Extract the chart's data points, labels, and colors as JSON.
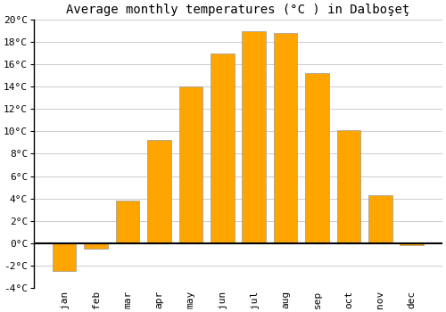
{
  "title": "Average monthly temperatures (°C ) in Dalboşeţ",
  "months": [
    "Jan",
    "Feb",
    "Mar",
    "Apr",
    "May",
    "Jun",
    "Jul",
    "Aug",
    "Sep",
    "Oct",
    "Nov",
    "Dec"
  ],
  "values": [
    -2.5,
    -0.5,
    3.8,
    9.2,
    14.0,
    17.0,
    19.0,
    18.8,
    15.2,
    10.1,
    4.3,
    -0.2
  ],
  "bar_color": "#FFA500",
  "bar_edge_color": "#999999",
  "ylim": [
    -4,
    20
  ],
  "yticks": [
    -4,
    -2,
    0,
    2,
    4,
    6,
    8,
    10,
    12,
    14,
    16,
    18,
    20
  ],
  "background_color": "#ffffff",
  "grid_color": "#cccccc",
  "title_fontsize": 10,
  "tick_fontsize": 8,
  "zero_line_color": "#000000",
  "bar_width": 0.75
}
